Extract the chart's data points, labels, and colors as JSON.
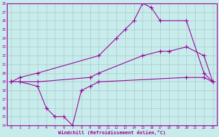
{
  "xlabel": "Windchill (Refroidissement éolien,°C)",
  "bg_color": "#c8ecec",
  "grid_color": "#a8c8c8",
  "line_color": "#990099",
  "xlim": [
    -0.5,
    23.5
  ],
  "ylim": [
    14,
    28
  ],
  "xticks": [
    0,
    1,
    2,
    3,
    4,
    5,
    6,
    7,
    8,
    9,
    10,
    11,
    12,
    13,
    14,
    15,
    16,
    17,
    18,
    19,
    20,
    21,
    22,
    23
  ],
  "yticks": [
    14,
    15,
    16,
    17,
    18,
    19,
    20,
    21,
    22,
    23,
    24,
    25,
    26,
    27,
    28
  ],
  "line1_x": [
    0,
    1,
    3,
    4,
    5,
    6,
    7,
    8,
    9,
    10,
    20,
    22,
    23
  ],
  "line1_y": [
    19,
    19,
    18.5,
    16,
    15,
    15,
    14,
    18,
    18.5,
    19,
    19.5,
    19.5,
    19
  ],
  "line2_x": [
    0,
    1,
    3,
    9,
    10,
    15,
    17,
    18,
    20,
    22,
    23
  ],
  "line2_y": [
    19,
    19,
    19,
    19.5,
    20,
    22,
    22.5,
    22.5,
    23,
    22,
    19
  ],
  "line3_x": [
    0,
    1,
    3,
    10,
    12,
    13,
    14,
    15,
    16,
    17,
    20,
    22,
    23
  ],
  "line3_y": [
    19,
    19.5,
    20,
    22,
    24,
    25,
    26,
    28,
    27.5,
    26,
    26,
    20,
    19
  ]
}
